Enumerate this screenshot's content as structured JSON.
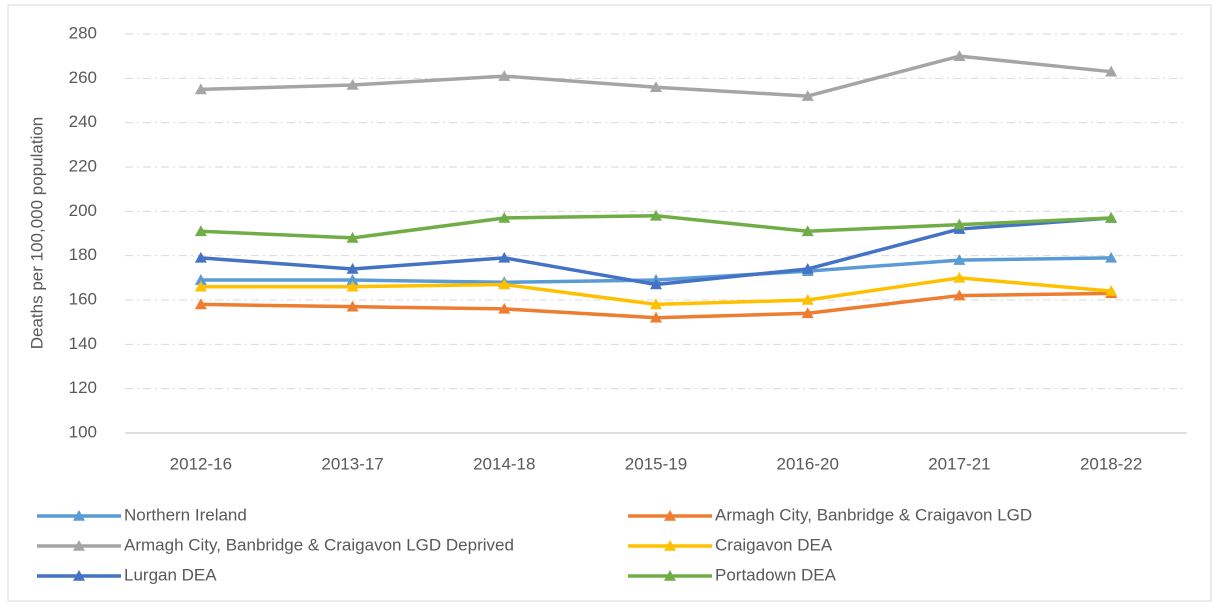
{
  "chart_data": {
    "type": "line",
    "y_label": "Deaths per 100,000 population",
    "categories": [
      "2012-16",
      "2013-17",
      "2014-18",
      "2015-19",
      "2016-20",
      "2017-21",
      "2018-22"
    ],
    "series": [
      {
        "name": "Northern Ireland",
        "color": "#5b9bd5",
        "values": [
          169,
          169,
          168,
          169,
          173,
          178,
          179
        ]
      },
      {
        "name": "Armagh City, Banbridge & Craigavon LGD",
        "color": "#ed7d31",
        "values": [
          158,
          157,
          156,
          152,
          154,
          162,
          163
        ]
      },
      {
        "name": "Armagh City, Banbridge & Craigavon LGD Deprived",
        "color": "#a5a5a5",
        "values": [
          255,
          257,
          261,
          256,
          252,
          270,
          263
        ]
      },
      {
        "name": "Craigavon DEA",
        "color": "#ffc000",
        "values": [
          166,
          166,
          167,
          158,
          160,
          170,
          164
        ]
      },
      {
        "name": "Lurgan DEA",
        "color": "#4472c4",
        "values": [
          179,
          174,
          179,
          167,
          174,
          192,
          197
        ]
      },
      {
        "name": "Portadown DEA",
        "color": "#70ad47",
        "values": [
          191,
          188,
          197,
          198,
          191,
          194,
          197
        ]
      }
    ],
    "ylim": [
      100,
      280
    ],
    "yticks": [
      100,
      120,
      140,
      160,
      180,
      200,
      220,
      240,
      260,
      280
    ],
    "grid": true,
    "legend": "bottom",
    "marker": "triangle"
  }
}
